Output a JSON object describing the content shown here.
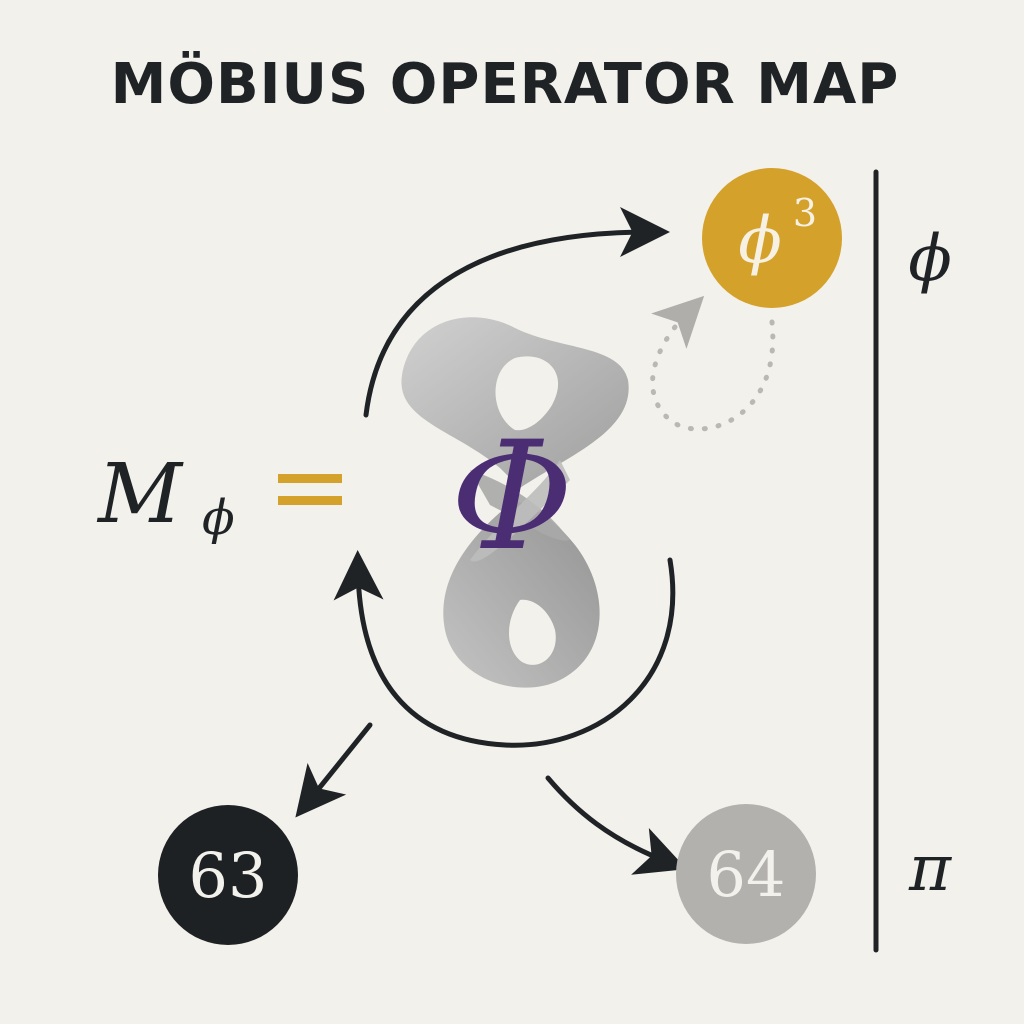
{
  "title": "MÖBIUS OPERATOR MAP",
  "operator": {
    "symbol": "M",
    "subscript": "ϕ",
    "equals": "="
  },
  "center_symbol": "Φ",
  "nodes": {
    "phi_cubed": {
      "base": "ϕ",
      "exponent": "3"
    },
    "n63": {
      "label": "63"
    },
    "n64": {
      "label": "64"
    }
  },
  "scale": {
    "top_label": "ϕ",
    "bottom_label": "π"
  },
  "colors": {
    "background": "#f3f1ec",
    "ink": "#1f2326",
    "gold": "#d4a12a",
    "purple": "#4b2d73",
    "gray_node": "#b3b1ae",
    "dark_node": "#1e2124",
    "ribbon_light": "#c4c4c4",
    "ribbon_dark": "#8c8c8c",
    "dotted_arrow": "#b9b7b3"
  }
}
